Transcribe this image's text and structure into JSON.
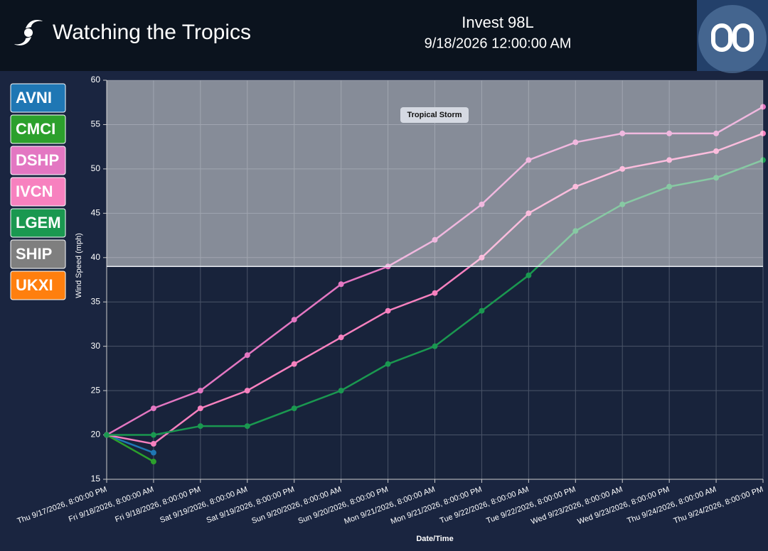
{
  "header": {
    "title": "Watching the Tropics",
    "storm": "Invest 98L",
    "time": "9/18/2026 12:00:00 AM"
  },
  "chart_data": {
    "type": "line",
    "x_label": "Date/Time",
    "y_label": "Wind Speed (mph)",
    "categories": [
      "Thu 9/17/2026, 8:00:00 PM",
      "Fri 9/18/2026, 8:00:00 AM",
      "Fri 9/18/2026, 8:00:00 PM",
      "Sat 9/19/2026, 8:00:00 AM",
      "Sat 9/19/2026, 8:00:00 PM",
      "Sun 9/20/2026, 8:00:00 AM",
      "Sun 9/20/2026, 8:00:00 PM",
      "Mon 9/21/2026, 8:00:00 AM",
      "Mon 9/21/2026, 8:00:00 PM",
      "Tue 9/22/2026, 8:00:00 AM",
      "Tue 9/22/2026, 8:00:00 PM",
      "Wed 9/23/2026, 8:00:00 AM",
      "Wed 9/23/2026, 8:00:00 PM",
      "Thu 9/24/2026, 8:00:00 AM",
      "Thu 9/24/2026, 8:00:00 PM"
    ],
    "series": [
      {
        "name": "AVNI",
        "color": "#1f77b4",
        "values": [
          20,
          18,
          null,
          null,
          null,
          null,
          null,
          null,
          null,
          null,
          null,
          null,
          null,
          null,
          null
        ]
      },
      {
        "name": "CMCI",
        "color": "#2ca02c",
        "values": [
          20,
          17,
          null,
          null,
          null,
          null,
          null,
          null,
          null,
          null,
          null,
          null,
          null,
          null,
          null
        ]
      },
      {
        "name": "DSHP",
        "color": "#e377c2",
        "values": [
          20,
          23,
          25,
          29,
          33,
          37,
          39,
          42,
          46,
          51,
          53,
          54,
          54,
          54,
          57
        ]
      },
      {
        "name": "IVCN",
        "color": "#f781bf",
        "values": [
          20,
          19,
          23,
          25,
          28,
          31,
          34,
          36,
          40,
          45,
          48,
          50,
          51,
          52,
          54
        ]
      },
      {
        "name": "LGEM",
        "color": "#1a9850",
        "values": [
          20,
          20,
          21,
          21,
          23,
          25,
          28,
          30,
          34,
          38,
          43,
          46,
          48,
          49,
          51
        ]
      },
      {
        "name": "SHIP",
        "color": "#7f7f7f",
        "values": [
          null,
          null,
          null,
          null,
          null,
          null,
          null,
          null,
          null,
          null,
          null,
          null,
          null,
          null,
          null
        ]
      },
      {
        "name": "UKXI",
        "color": "#ff7f0e",
        "values": [
          null,
          null,
          null,
          null,
          null,
          null,
          null,
          null,
          null,
          null,
          null,
          null,
          null,
          null,
          null
        ]
      }
    ],
    "ylim": [
      15,
      60
    ],
    "yticks": [
      15,
      20,
      25,
      30,
      35,
      40,
      45,
      50,
      55,
      60
    ],
    "grid": true,
    "band": {
      "label": "Tropical Storm",
      "from": 39
    }
  }
}
